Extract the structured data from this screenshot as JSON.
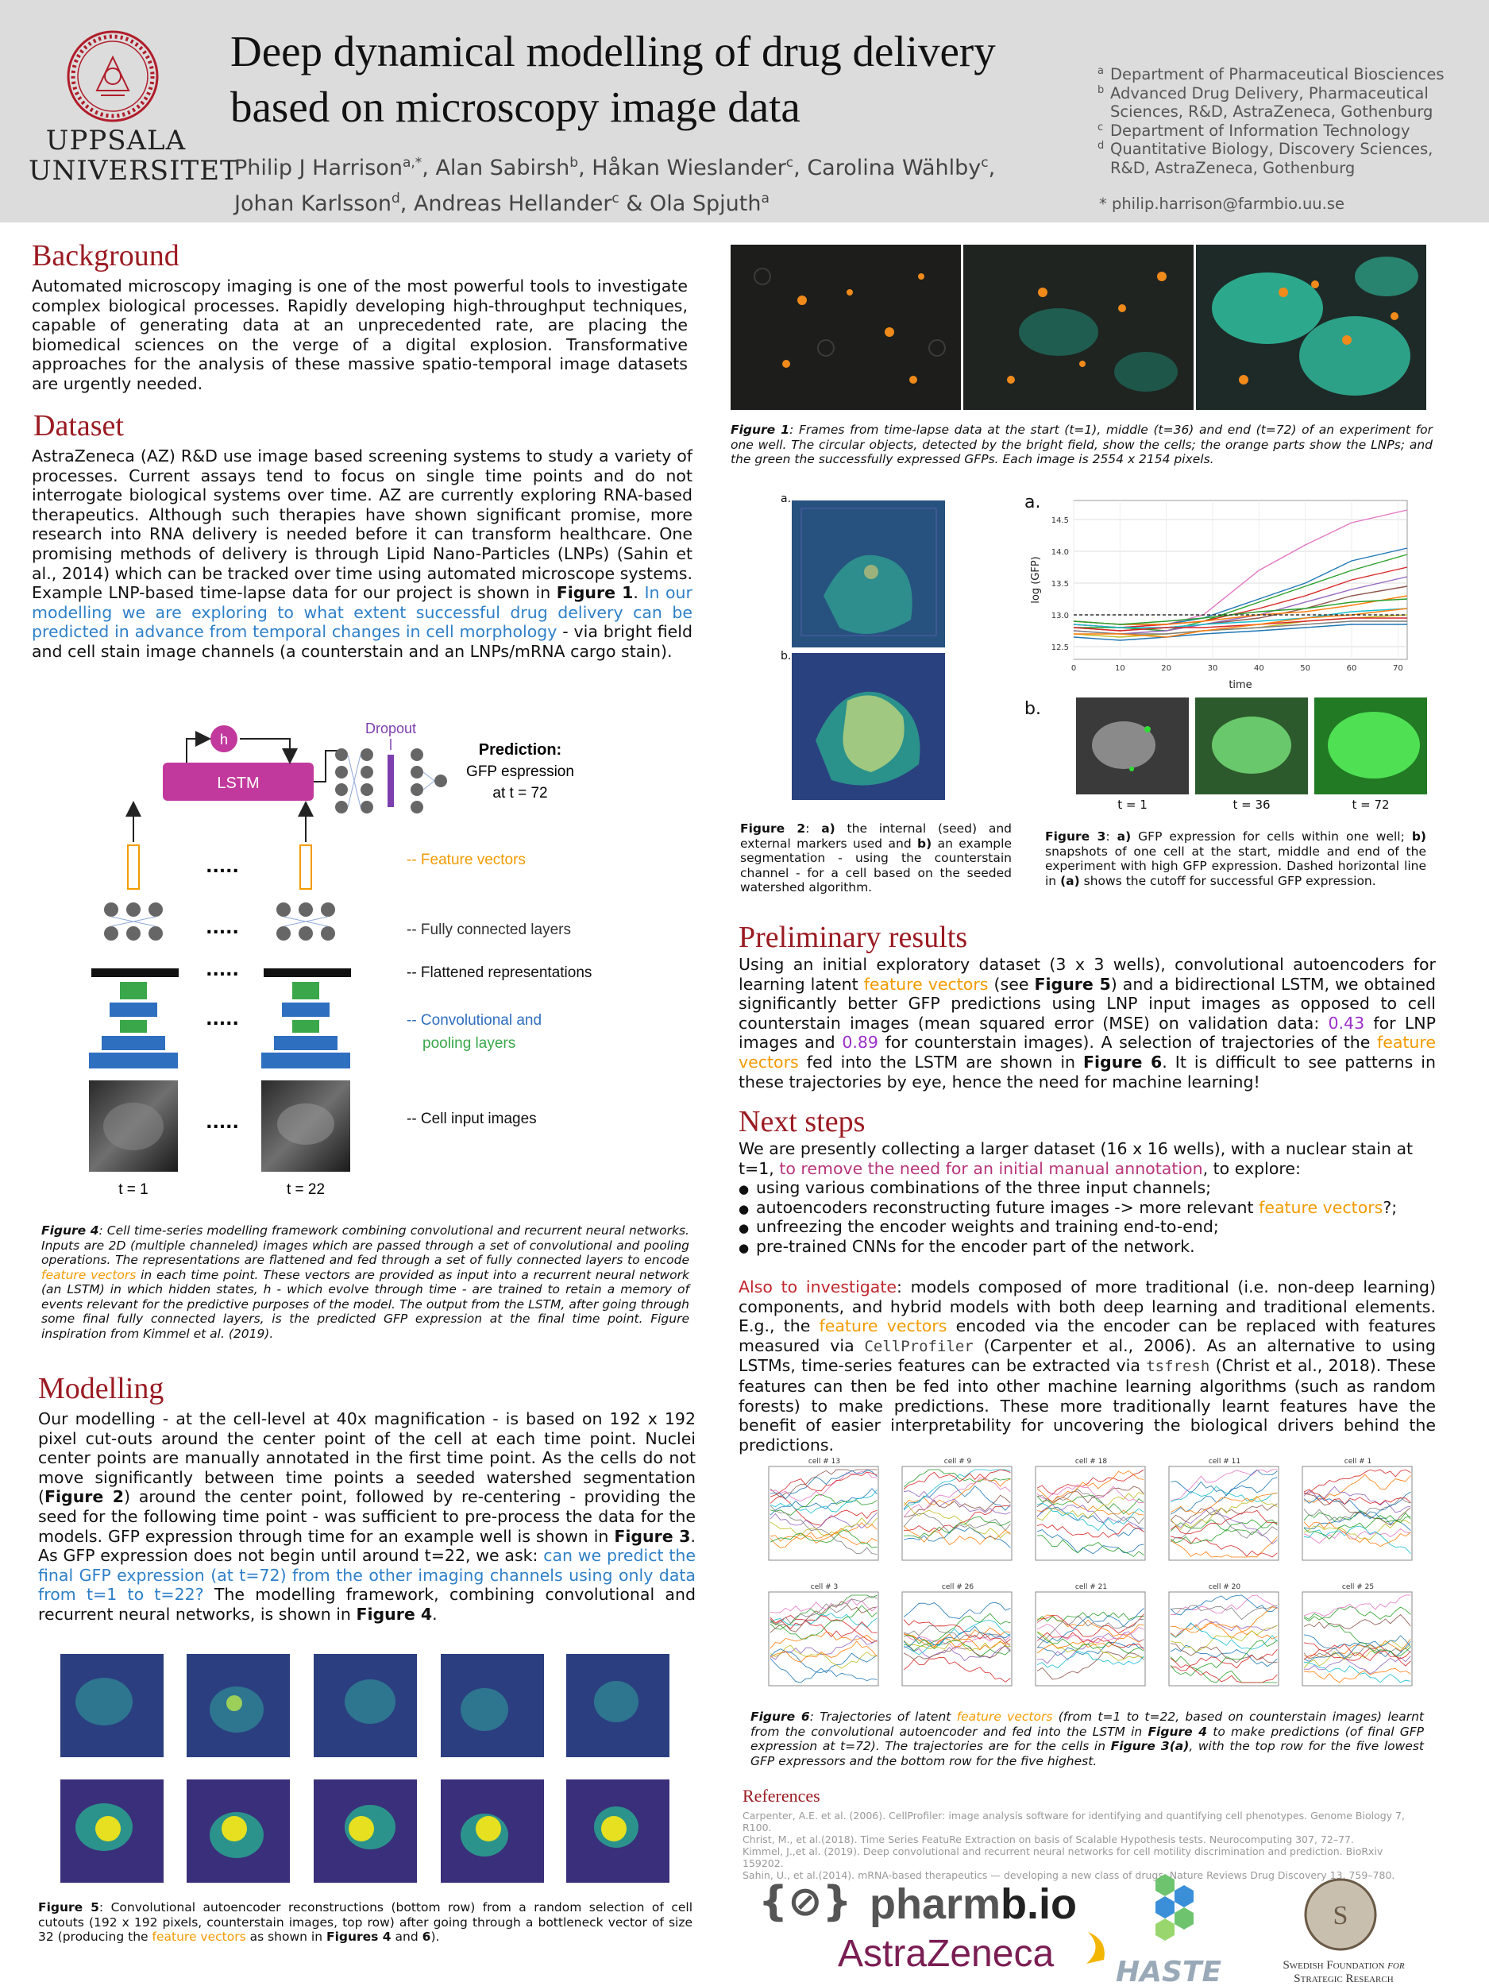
{
  "header": {
    "title_line1": "Deep dynamical modelling of drug delivery",
    "title_line2": "based on microscopy image data",
    "logo_line1": "UPPSALA",
    "logo_line2": "UNIVERSITET",
    "authors": [
      {
        "name": "Philip J Harrison",
        "sup": "a,*"
      },
      {
        "name": "Alan Sabirsh",
        "sup": "b"
      },
      {
        "name": "Håkan Wieslander",
        "sup": "c"
      },
      {
        "name": "Carolina Wählby",
        "sup": "c"
      },
      {
        "name": "Johan Karlsson",
        "sup": "d"
      },
      {
        "name": "Andreas Hellander",
        "sup": "c"
      },
      {
        "name": "Ola Spjuth",
        "sup": "a"
      }
    ],
    "affiliations": [
      {
        "key": "a",
        "text": "Department of Pharmaceutical Biosciences"
      },
      {
        "key": "b",
        "text": "Advanced Drug Delivery, Pharmaceutical Sciences, R&D, AstraZeneca, Gothenburg"
      },
      {
        "key": "c",
        "text": "Department of Information Technology"
      },
      {
        "key": "d",
        "text": "Quantitative Biology, Discovery Sciences, R&D, AstraZeneca, Gothenburg"
      }
    ],
    "email": "* philip.harrison@farmbio.uu.se"
  },
  "background": {
    "title": "Background",
    "text": "Automated microscopy imaging is one of the most powerful tools to investigate complex biological processes. Rapidly developing high-throughput techniques, capable of generating data at an unprecedented rate, are placing the biomedical sciences on the verge of a digital explosion. Transformative approaches for the analysis of these massive spatio-temporal image datasets are urgently needed."
  },
  "dataset": {
    "title": "Dataset",
    "p1": "AstraZeneca (AZ) R&D use image based screening systems to study a variety of processes. Current assays tend to focus on single time points and do not interrogate biological systems over time. AZ are currently exploring RNA-based therapeutics. Although such therapies have shown significant promise, more research into RNA delivery is needed before it can transform healthcare. One promising methods of delivery is through Lipid Nano-Particles (LNPs) (Sahin et al., 2014) which can be tracked over time using automated microscope systems. Example LNP-based time-lapse data for our project is shown in",
    "fig_ref": "Figure 1",
    "p1_end": ".",
    "blue_text": "In our modelling we are exploring to what extent successful drug delivery can be predicted in advance from temporal changes in cell morphology",
    "p2": "- via bright field and cell stain image channels (a counterstain and an LNPs/mRNA cargo stain)."
  },
  "fig4": {
    "dropout": "Dropout",
    "lstm": "LSTM",
    "h": "h",
    "prediction_l1": "Prediction:",
    "prediction_l2": "GFP espression",
    "prediction_l3": "at t = 72",
    "dots": ".....",
    "label_feature": "-- Feature vectors",
    "label_fc": "-- Fully connected layers",
    "label_flat": "-- Flattened representations",
    "label_conv1": "-- Convolutional and",
    "label_conv2": "pooling layers",
    "label_input": "-- Cell input images",
    "t1": "t = 1",
    "t22": "t = 22",
    "caption_lead": "Figure 4",
    "caption_a": ": Cell time-series modelling framework combining convolutional and recurrent neural networks. Inputs are 2D (multiple channeled) images which are passed through a set of convolutional and pooling operations. The representations are flattened and fed through a set of fully connected layers to encode",
    "caption_orange": "feature vectors",
    "caption_b": "in each time point. These vectors are provided as input into a recurrent neural network (an LSTM) in which hidden states, h - which evolve through time - are trained to retain a memory of events relevant for the predictive purposes of the model. The output from the LSTM, after going through some final fully connected layers, is the predicted GFP expression at the final time point. Figure inspiration from Kimmel et al. (2019)."
  },
  "modelling": {
    "title": "Modelling",
    "t1": "Our modelling - at the cell-level at 40x magnification - is based on 192 x 192 pixel cut-outs around the center point of the cell at each time point. Nuclei center points are manually annotated in the first time point. As the cells do not move significantly between time points a seeded watershed segmentation (",
    "fig2": "Figure 2",
    "t2": ") around the center point, followed by re-centering - providing the seed for the following time point - was sufficient to pre-process the data for the models. GFP expression through time for an example well is shown in",
    "fig3": "Figure 3",
    "t3": ". As GFP expression does not begin until around t=22, we ask:",
    "blue": "can we predict the final GFP expression (at t=72) from the other imaging channels using only data from t=1 to t=22?",
    "t4": " The modelling framework, combining convolutional and recurrent neural networks, is shown in",
    "fig4": "Figure 4",
    "t5": "."
  },
  "fig5": {
    "lead": "Figure 5",
    "a": ": Convolutional autoencoder reconstructions (bottom row) from a random selection of cell cutouts (192 x 192 pixels, counterstain images, top row) after going through a bottleneck vector of size 32 (producing the",
    "orange": "feature vectors",
    "b": "as shown in",
    "f4": "Figures 4",
    "and": "and",
    "f6": "6",
    "end": ")."
  },
  "fig1": {
    "lead": "Figure 1",
    "text": ": Frames from time-lapse data at the start (t=1), middle (t=36) and end (t=72) of an experiment for one well. The circular objects, detected by the bright field, show the cells; the orange parts show the LNPs; and the green the successfully expressed GFPs. Each image is 2554 x 2154 pixels."
  },
  "fig2": {
    "label_a": "a.",
    "label_b": "b.",
    "lead": "Figure 2",
    "t1": ": ",
    "a": "a)",
    "t2": " the internal (seed) and external markers used and ",
    "b": "b)",
    "t3": " an example segmentation - using the counterstain channel - for a cell based on the seeded watershed algorithm."
  },
  "fig3": {
    "label_a": "a.",
    "label_b": "b.",
    "ylabel": "log (GFP)",
    "xlabel": "time",
    "t1": "t = 1",
    "t36": "t = 36",
    "t72": "t = 72",
    "lead": "Figure 3",
    "c1": ": ",
    "a": "a)",
    "c2": " GFP expression for cells within one well; ",
    "b": "b)",
    "c3": " snapshots of one cell at the start, middle and end of the experiment with high GFP expression. Dashed horizontal line in ",
    "a2": "(a)",
    "c4": " shows the cutoff for successful GFP expression."
  },
  "chart_data": {
    "type": "line",
    "xlabel": "time",
    "ylabel": "log (GFP)",
    "xlim": [
      0,
      72
    ],
    "ylim": [
      12.3,
      14.8
    ],
    "xticks": [
      0,
      10,
      20,
      30,
      40,
      50,
      60,
      70
    ],
    "yticks": [
      12.5,
      13.0,
      13.5,
      14.0,
      14.5
    ],
    "cutoff": 13.0,
    "x": [
      0,
      10,
      20,
      28,
      40,
      50,
      60,
      72
    ],
    "series": [
      {
        "color": "#e377c2",
        "values": [
          12.85,
          12.8,
          12.85,
          13.0,
          13.7,
          14.1,
          14.45,
          14.65
        ]
      },
      {
        "color": "#1f77b4",
        "values": [
          12.9,
          12.85,
          12.85,
          12.95,
          13.25,
          13.5,
          13.85,
          14.05
        ]
      },
      {
        "color": "#2ca02c",
        "values": [
          12.8,
          12.8,
          12.75,
          12.9,
          13.2,
          13.45,
          13.7,
          13.95
        ]
      },
      {
        "color": "#d62728",
        "values": [
          12.85,
          12.8,
          12.85,
          12.9,
          13.1,
          13.3,
          13.55,
          13.75
        ]
      },
      {
        "color": "#9467bd",
        "values": [
          12.75,
          12.7,
          12.75,
          12.85,
          13.0,
          13.2,
          13.4,
          13.6
        ]
      },
      {
        "color": "#8c564b",
        "values": [
          12.8,
          12.75,
          12.8,
          12.85,
          12.95,
          13.1,
          13.3,
          13.45
        ]
      },
      {
        "color": "#ff7f0e",
        "values": [
          12.9,
          12.85,
          12.85,
          12.9,
          13.0,
          13.05,
          13.15,
          13.3
        ]
      },
      {
        "color": "#17becf",
        "values": [
          12.85,
          12.8,
          12.8,
          12.85,
          12.9,
          12.95,
          13.05,
          13.1
        ]
      },
      {
        "color": "#bcbd22",
        "values": [
          12.7,
          12.65,
          12.7,
          12.75,
          12.8,
          12.9,
          12.95,
          13.0
        ]
      },
      {
        "color": "#7f7f7f",
        "values": [
          12.75,
          12.7,
          12.7,
          12.75,
          12.8,
          12.85,
          12.9,
          12.9
        ]
      },
      {
        "color": "#1f77b4",
        "values": [
          12.65,
          12.6,
          12.65,
          12.7,
          12.75,
          12.8,
          12.85,
          12.85
        ]
      },
      {
        "color": "#d62728",
        "values": [
          12.8,
          12.75,
          12.8,
          12.8,
          12.85,
          12.9,
          12.95,
          12.95
        ]
      },
      {
        "color": "#2ca02c",
        "values": [
          12.9,
          12.85,
          12.9,
          12.95,
          13.05,
          13.1,
          13.2,
          13.25
        ]
      },
      {
        "color": "#ff7f0e",
        "values": [
          12.7,
          12.7,
          12.65,
          12.75,
          12.85,
          12.95,
          13.0,
          13.1
        ]
      }
    ]
  },
  "prelim": {
    "title": "Preliminary results",
    "t1": "Using an initial exploratory dataset (3 x 3 wells), convolutional autoencoders for learning latent",
    "fv1": "feature vectors",
    "t2": "(see",
    "f5": "Figure 5",
    "t3": ") and a bidirectional LSTM, we obtained significantly better GFP predictions using LNP input images as opposed to cell counterstain images (mean squared error (MSE) on validation data:",
    "v1": "0.43",
    "t4": "for LNP images and",
    "v2": "0.89",
    "t5": "for counterstain images). A selection of trajectories of the",
    "fv2": "feature vectors",
    "t6": "fed into the LSTM are shown in",
    "f6": "Figure 6",
    "t7": ". It is difficult to see patterns in these trajectories by eye, hence the need for machine learning!"
  },
  "next": {
    "title": "Next steps",
    "intro": "We are presently collecting a larger dataset (16 x 16 wells), with a nuclear stain at t=1,",
    "intro_mag": "to remove the need for an initial manual annotation",
    "intro_end": ", to explore:",
    "b1": "using various combinations of the three input channels;",
    "b2a": "autoencoders reconstructing future images -> more relevant",
    "b2o": "feature vectors",
    "b2b": "?;",
    "b3": "unfreezing the encoder weights and training end-to-end;",
    "b4": "pre-trained CNNs for the encoder part of the network.",
    "also": "Also to investigate",
    "p1": ": models composed of more traditional (i.e. non-deep learning) components, and hybrid models with both deep learning and traditional elements. E.g., the",
    "fv": "feature vectors",
    "p2": "encoded via the encoder can be replaced with features measured via",
    "cp": "CellProfiler",
    "p3": "(Carpenter et al., 2006). As an alternative to using LSTMs, time-series features can be extracted via",
    "ts": "tsfresh",
    "p4": "(Christ et al., 2018). These features can then be fed into other machine learning algorithms (such as random forests) to make predictions. These more traditionally learnt features have the benefit of easier interpretability for uncovering the biological drivers behind the predictions."
  },
  "fig6": {
    "cells": [
      "cell # 13",
      "cell # 9",
      "cell # 18",
      "cell # 11",
      "cell # 1",
      "cell # 3",
      "cell # 26",
      "cell # 21",
      "cell # 20",
      "cell # 25"
    ],
    "lead": "Figure 6",
    "a": ": Trajectories of latent",
    "orange": "feature vectors",
    "b": "(from t=1 to t=22, based on counterstain images) learnt from the convolutional autoencoder and fed into the LSTM in",
    "f4": "Figure 4",
    "c": "to make predictions (of final GFP expression at t=72). The trajectories are for the cells in",
    "f3": "Figure 3(a)",
    "d": ", with the top row for the five lowest GFP expressors and the bottom row for the five highest."
  },
  "refs": {
    "title": "References",
    "items": [
      "Carpenter, A.E. et al. (2006). CellProfiler: image analysis software for identifying and quantifying cell phenotypes. Genome Biology 7, R100.",
      "Christ, M., et al.(2018). Time Series FeatuRe Extraction on basis of Scalable Hypothesis tests. Neurocomputing 307, 72–77.",
      "Kimmel, J.,et al. (2019). Deep convolutional and recurrent neural networks for cell motility discrimination and prediction. BioRxiv 159202.",
      "Sahin, U., et al.(2014). mRNA-based therapeutics — developing a new class of drugs. Nature Reviews Drug Discovery 13, 759–780."
    ]
  },
  "logos": {
    "pharmbio_a": "pharm",
    "pharmbio_b": "b.io",
    "az": "AstraZeneca",
    "haste": "HASTE",
    "ssf_l1": "Swedish Foundation",
    "ssf_for": "for",
    "ssf_l2": "Strategic Research"
  },
  "colors": {
    "section_title": "#9b1b22",
    "header_bg": "#dcdcdc",
    "blue": "#2f80c8",
    "orange": "#f29b00",
    "lstm": "#c2399d",
    "dropout": "#7d3fae"
  }
}
